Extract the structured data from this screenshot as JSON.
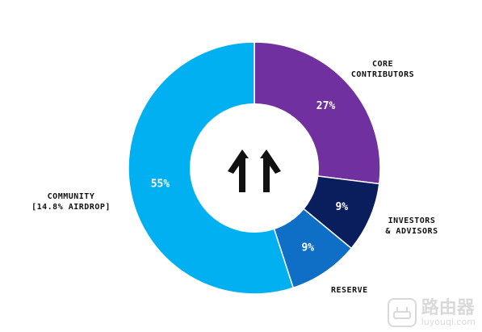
{
  "chart_data": {
    "type": "pie",
    "donut": true,
    "slices": [
      {
        "label_lines": [
          "CORE",
          "CONTRIBUTORS"
        ],
        "value": 27,
        "value_label": "27%",
        "color": "#7030A0"
      },
      {
        "label_lines": [
          "INVESTORS",
          "& ADVISORS"
        ],
        "value": 9,
        "value_label": "9%",
        "color": "#0A1E5E"
      },
      {
        "label_lines": [
          "RESERVE"
        ],
        "value": 9,
        "value_label": "9%",
        "color": "#0F6FC6"
      },
      {
        "label_lines": [
          "COMMUNITY",
          "[14.8% AIRDROP]"
        ],
        "value": 55,
        "value_label": "55%",
        "color": "#00B0F0"
      }
    ],
    "start": "12 o'clock",
    "direction": "clockwise",
    "center_logo": "double-up-arrow-logo"
  },
  "watermark": {
    "text_cn": "路由器",
    "text_en": "luyouqi.com",
    "icon": "router-icon"
  }
}
